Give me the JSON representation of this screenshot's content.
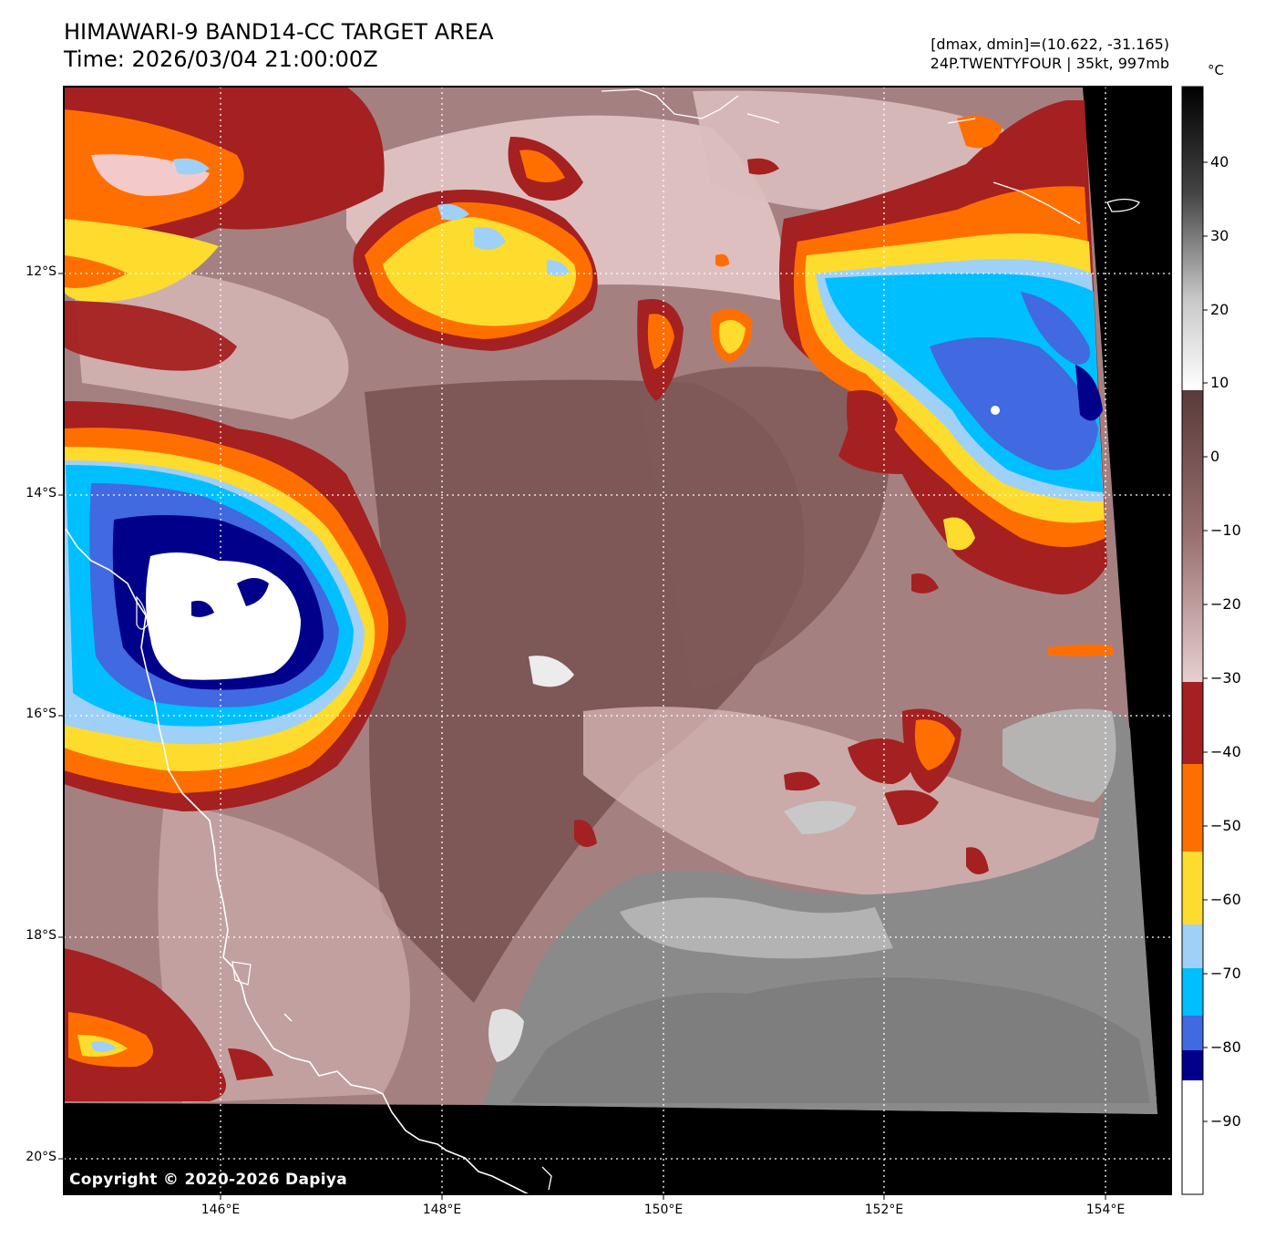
{
  "header": {
    "title_line1": "HIMAWARI-9 BAND14-CC TARGET AREA",
    "title_line2": "Time: 2026/03/04 21:00:00Z",
    "meta_line1": "[dmax, dmin]=(10.622, -31.165)",
    "meta_line2": "24P.TWENTYFOUR | 35kt, 997mb"
  },
  "copyright": "Copyright © 2020-2026 Dapiya",
  "axes": {
    "lat_labels": [
      "12°S",
      "14°S",
      "16°S",
      "18°S",
      "20°S"
    ],
    "lon_labels": [
      "146°E",
      "148°E",
      "150°E",
      "152°E",
      "154°E"
    ]
  },
  "colorbar": {
    "unit": "°C",
    "ticks": [
      "40",
      "30",
      "20",
      "10",
      "0",
      "−10",
      "−20",
      "−30",
      "−40",
      "−50",
      "−60",
      "−70",
      "−80",
      "−90"
    ],
    "colors": {
      "white": "#ffffff",
      "navy": "#00008b",
      "royal": "#4169e1",
      "cyan": "#00bfff",
      "lightblue": "#9fd0f7",
      "yellow": "#fddc2e",
      "orange": "#ff6f00",
      "red": "#a52020",
      "pink": "#f2d2d2",
      "mauve": "#6e4848",
      "gray": "#8a8a8a",
      "black": "#000000"
    }
  }
}
